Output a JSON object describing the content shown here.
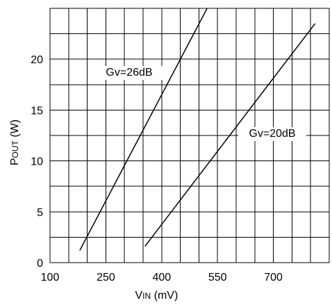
{
  "chart_data": {
    "type": "line",
    "xlabel": {
      "main": "V",
      "sub": "IN",
      "unit": "(mV)"
    },
    "ylabel": {
      "main": "P",
      "sub": "OUT",
      "unit": "(W)"
    },
    "xlim": [
      100,
      850
    ],
    "ylim": [
      0,
      25
    ],
    "x_tick_labels": [
      "100",
      "250",
      "400",
      "550",
      "700"
    ],
    "x_tick_values": [
      100,
      250,
      400,
      550,
      700
    ],
    "y_tick_labels": [
      "0",
      "5",
      "10",
      "15",
      "20"
    ],
    "y_tick_values": [
      0,
      5,
      10,
      15,
      20
    ],
    "grid": true,
    "series": [
      {
        "name": "Gv=26dB",
        "points": [
          [
            180,
            1.2
          ],
          [
            522,
            25
          ]
        ]
      },
      {
        "name": "Gv=20dB",
        "points": [
          [
            355,
            1.6
          ],
          [
            812,
            23.5
          ]
        ]
      }
    ]
  }
}
